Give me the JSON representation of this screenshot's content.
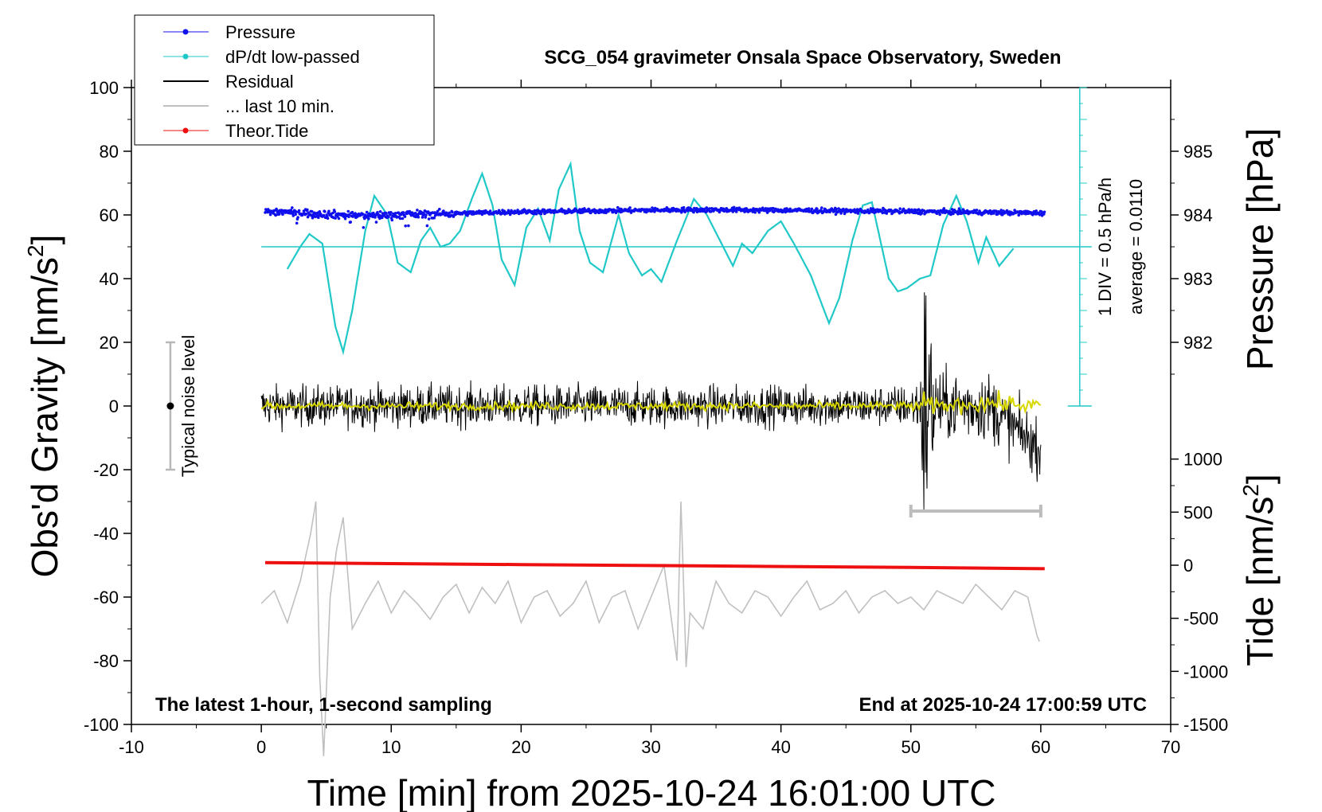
{
  "chart_data": {
    "type": "line",
    "title": "SCG_054 gravimeter Onsala Space Observatory, Sweden",
    "xlabel": "Time [min] from 2025-10-24 16:01:00 UTC",
    "ylabel_left": "Obs'd Gravity [nm/s",
    "ylabel_left_sup": "2",
    "ylabel_left_close": "]",
    "ylabel_right_top": "Pressure [hPa]",
    "ylabel_right_bottom": "Tide [nm/s",
    "ylabel_right_bottom_sup": "2",
    "ylabel_right_bottom_close": "]",
    "xlim": [
      -10,
      70
    ],
    "ylim_left": [
      -100,
      100
    ],
    "x_ticks": [
      -10,
      0,
      10,
      20,
      30,
      40,
      50,
      60,
      70
    ],
    "x_tick_labels": [
      "-10",
      "0",
      "10",
      "20",
      "30",
      "40",
      "50",
      "60",
      "70"
    ],
    "y_left_ticks": [
      100,
      80,
      60,
      40,
      20,
      0,
      -20,
      -40,
      -60,
      -80,
      -100
    ],
    "y_left_tick_labels": [
      "100",
      "80",
      "60",
      "40",
      "20",
      "0",
      "-20",
      "-40",
      "-60",
      "-80",
      "-100"
    ],
    "pressure_ticks": [
      985,
      984,
      983,
      982
    ],
    "pressure_tick_labels": [
      "985",
      "984",
      "983",
      "982"
    ],
    "pressure_axis_map": {
      "hPa_985_at_gravity": 80,
      "hPa_per_gravity_unit": 0.05
    },
    "tide_ticks": [
      1000,
      500,
      0,
      -500,
      -1000,
      -1500
    ],
    "tide_tick_labels": [
      "1000",
      "500",
      "0",
      "-500",
      "-1000",
      "-1500"
    ],
    "tide_axis_map": {
      "tide_0_at_gravity": -50,
      "tide_per_gravity_unit": 30
    },
    "legend": {
      "placement": "top-left",
      "entries": [
        {
          "label": "Pressure",
          "color": "#1010ee",
          "marker": "dot"
        },
        {
          "label": "dP/dt low-passed",
          "color": "#20c8c8",
          "marker": "dot"
        },
        {
          "label": "Residual",
          "color": "#000000",
          "marker": "none"
        },
        {
          "label": "... last 10 min.",
          "color": "#c0c0c0",
          "marker": "none"
        },
        {
          "label": "Theor.Tide",
          "color": "#ee1010",
          "marker": "dot"
        }
      ]
    },
    "annotations": {
      "bottom_left": "The latest 1-hour, 1-second sampling",
      "bottom_right": "End at 2025-10-24 17:00:59 UTC",
      "noise_label": "Typical noise level",
      "dpdt_scale": "1 DIV = 0.5 hPa/h",
      "dpdt_average": "average = 0.0110"
    },
    "noise_bar": {
      "x": -7,
      "center": 0,
      "low": -20,
      "high": 20
    },
    "dpdt_scale_bar": {
      "x": 63,
      "y_bottom": 0,
      "y_top": 100,
      "divisions": 20
    },
    "last10_bracket": {
      "x_start": 50,
      "x_end": 60,
      "y": -33
    },
    "series": [
      {
        "name": "Pressure",
        "color": "#1010ee",
        "style": "dots",
        "x": [
          0.3,
          2,
          4,
          6,
          8,
          10,
          12,
          14,
          16,
          18,
          20,
          22,
          24,
          26,
          28,
          30,
          32,
          34,
          36,
          38,
          40,
          42,
          44,
          46,
          48,
          50,
          52,
          54,
          56,
          58,
          60.3
        ],
        "y": [
          61,
          61,
          60.5,
          60,
          59.8,
          60,
          60.2,
          60.4,
          60.6,
          60.8,
          61,
          61,
          61.2,
          61.3,
          61.4,
          61.5,
          61.6,
          61.6,
          61.6,
          61.5,
          61.5,
          61.4,
          61.3,
          61.2,
          61.2,
          61.1,
          61,
          60.9,
          60.8,
          60.7,
          60.6
        ]
      },
      {
        "name": "dP/dt low-passed",
        "color": "#20c8c8",
        "style": "line",
        "baseline": 50,
        "x": [
          2,
          3,
          3.7,
          4.7,
          5.7,
          6.3,
          7,
          8,
          8.7,
          9.7,
          10.5,
          11.5,
          12.3,
          13,
          13.8,
          14.5,
          15.3,
          16.2,
          17,
          17.8,
          18.5,
          19.5,
          20.4,
          21.3,
          22.2,
          22.9,
          23.8,
          24.5,
          25.3,
          26.3,
          27.5,
          28.3,
          29.3,
          30,
          30.8,
          32,
          33.3,
          34.3,
          35.3,
          36.3,
          37,
          37.8,
          39,
          40,
          41,
          42.3,
          43.7,
          44.5,
          45.5,
          46.3,
          47,
          48.3,
          49,
          49.7,
          50.7,
          51.5,
          52.5,
          53.5,
          54.3,
          55.2,
          55.8,
          56.8,
          58
        ],
        "y": [
          43,
          50,
          54,
          51,
          25,
          17,
          30,
          55,
          66,
          60,
          45,
          42,
          52,
          56,
          50,
          51,
          55,
          65,
          73,
          63,
          46,
          38,
          56,
          62,
          52,
          68,
          76,
          55,
          45,
          42,
          60,
          48,
          41,
          43,
          39,
          52,
          65,
          60,
          52,
          44,
          51,
          48,
          55,
          58,
          51,
          41,
          26,
          34,
          52,
          63,
          64,
          40,
          36,
          37,
          40,
          41,
          57,
          66,
          58,
          45,
          53,
          44,
          50
        ]
      },
      {
        "name": "Residual",
        "color": "#000000",
        "style": "noise",
        "x": [
          0,
          10,
          20,
          30,
          40,
          50,
          50.7,
          51,
          52,
          55,
          56,
          60
        ],
        "y_center": [
          0,
          0,
          0,
          0,
          0,
          0,
          0,
          0,
          0,
          0,
          0,
          -14
        ],
        "amplitude": [
          6,
          6,
          6,
          6,
          6,
          6,
          8,
          45,
          10,
          10,
          10,
          8
        ]
      },
      {
        "name": "Residual low-passed",
        "color": "#d8d800",
        "style": "noise",
        "x": [
          0,
          10,
          20,
          30,
          40,
          50,
          51,
          52,
          56,
          60
        ],
        "y_center": [
          0,
          0,
          0,
          0,
          0,
          0,
          0,
          0,
          1,
          0
        ],
        "amplitude": [
          1.2,
          1.2,
          1.2,
          1.2,
          1.2,
          1.2,
          4,
          2,
          3,
          2
        ]
      },
      {
        "name": "... last 10 min.",
        "color": "#c0c0c0",
        "style": "line",
        "x": [
          0,
          1,
          2,
          3,
          3.8,
          4.2,
          4.5,
          4.8,
          5.3,
          5.8,
          6.3,
          7,
          8,
          9,
          10,
          11,
          12,
          13,
          14,
          15,
          16,
          17,
          18,
          19,
          20,
          21,
          22,
          23,
          24,
          25,
          26,
          27,
          28,
          29,
          30,
          31,
          32,
          32.3,
          32.7,
          33,
          34,
          35,
          36,
          37,
          38,
          39,
          40,
          41,
          42,
          43,
          44,
          45,
          46,
          47,
          48,
          49,
          50,
          51,
          52,
          53,
          54,
          55,
          56,
          57,
          58,
          59,
          59.7,
          60
        ],
        "y": [
          -62,
          -58,
          -68,
          -55,
          -40,
          -30,
          -85,
          -110,
          -60,
          -45,
          -35,
          -70,
          -62,
          -55,
          -65,
          -58,
          -62,
          -67,
          -60,
          -56,
          -65,
          -57,
          -62,
          -55,
          -68,
          -60,
          -58,
          -66,
          -62,
          -55,
          -68,
          -60,
          -58,
          -70,
          -60,
          -50,
          -80,
          -30,
          -82,
          -65,
          -70,
          -55,
          -62,
          -65,
          -58,
          -60,
          -66,
          -60,
          -55,
          -64,
          -62,
          -58,
          -65,
          -60,
          -58,
          -62,
          -60,
          -64,
          -58,
          -60,
          -62,
          -56,
          -60,
          -64,
          -58,
          -60,
          -72,
          -75
        ]
      },
      {
        "name": "Theor.Tide",
        "color": "#ee1010",
        "style": "line",
        "x": [
          0.3,
          10,
          20,
          30,
          40,
          50,
          60.3
        ],
        "y": [
          -49.2,
          -49.5,
          -49.8,
          -50.1,
          -50.4,
          -50.7,
          -51.1
        ]
      }
    ]
  }
}
